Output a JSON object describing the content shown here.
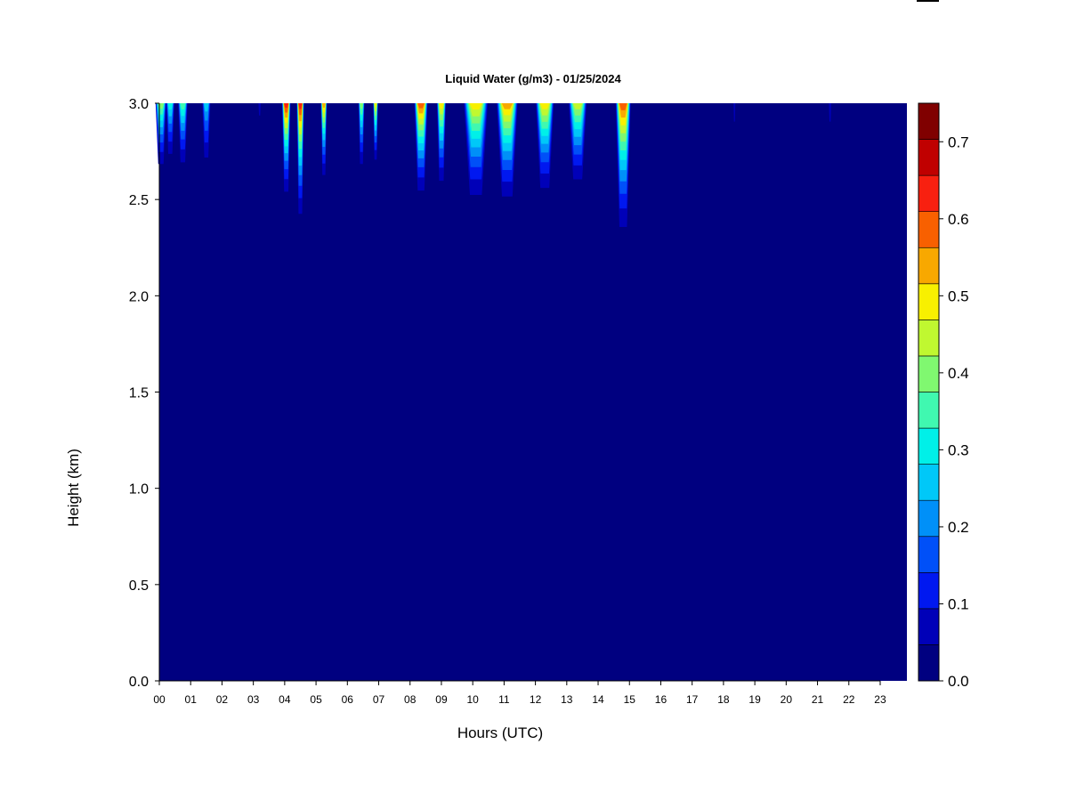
{
  "chart_data": {
    "type": "heatmap",
    "title": "Liquid Water (g/m3) - 01/25/2024",
    "xlabel": "Hours (UTC)",
    "ylabel": "Height (km)",
    "xlim": [
      0,
      24
    ],
    "ylim": [
      0,
      3.0
    ],
    "x_ticks": [
      "00",
      "01",
      "02",
      "03",
      "04",
      "05",
      "06",
      "07",
      "08",
      "09",
      "10",
      "11",
      "12",
      "13",
      "14",
      "15",
      "16",
      "17",
      "18",
      "19",
      "20",
      "21",
      "22",
      "23"
    ],
    "y_ticks": [
      "0.0",
      "0.5",
      "1.0",
      "1.5",
      "2.0",
      "2.5",
      "3.0"
    ],
    "grid": false,
    "colorbar": {
      "levels": [
        0.0,
        0.05,
        0.1,
        0.15,
        0.2,
        0.25,
        0.3,
        0.35,
        0.4,
        0.45,
        0.5,
        0.55,
        0.6,
        0.65,
        0.7,
        0.75
      ],
      "tick_labels": [
        "0.0",
        "0.1",
        "0.2",
        "0.3",
        "0.4",
        "0.5",
        "0.6",
        "0.7"
      ],
      "colors": [
        "#000080",
        "#0000b8",
        "#0018f0",
        "#0050f8",
        "#0090f8",
        "#00c8f8",
        "#00f0e8",
        "#40f8b0",
        "#80f870",
        "#c0f830",
        "#f8f000",
        "#f8a800",
        "#f86000",
        "#f82010",
        "#c00000",
        "#800000"
      ]
    },
    "cloud_events": [
      {
        "hour": 0.05,
        "width": 0.18,
        "top_value": 0.45,
        "base_km": 2.55
      },
      {
        "hour": 0.35,
        "width": 0.14,
        "top_value": 0.35,
        "base_km": 2.6
      },
      {
        "hour": 0.75,
        "width": 0.16,
        "top_value": 0.4,
        "base_km": 2.55
      },
      {
        "hour": 1.5,
        "width": 0.14,
        "top_value": 0.3,
        "base_km": 2.55
      },
      {
        "hour": 3.2,
        "width": 0.05,
        "top_value": 0.12,
        "base_km": 2.8
      },
      {
        "hour": 4.05,
        "width": 0.14,
        "top_value": 0.7,
        "base_km": 2.4
      },
      {
        "hour": 4.5,
        "width": 0.12,
        "top_value": 0.7,
        "base_km": 2.25
      },
      {
        "hour": 5.25,
        "width": 0.1,
        "top_value": 0.6,
        "base_km": 2.5
      },
      {
        "hour": 6.45,
        "width": 0.1,
        "top_value": 0.45,
        "base_km": 2.55
      },
      {
        "hour": 6.9,
        "width": 0.08,
        "top_value": 0.55,
        "base_km": 2.6
      },
      {
        "hour": 8.35,
        "width": 0.22,
        "top_value": 0.65,
        "base_km": 2.4
      },
      {
        "hour": 9.0,
        "width": 0.15,
        "top_value": 0.55,
        "base_km": 2.45
      },
      {
        "hour": 10.1,
        "width": 0.4,
        "top_value": 0.55,
        "base_km": 2.35
      },
      {
        "hour": 11.1,
        "width": 0.35,
        "top_value": 0.6,
        "base_km": 2.35
      },
      {
        "hour": 12.3,
        "width": 0.3,
        "top_value": 0.55,
        "base_km": 2.4
      },
      {
        "hour": 13.35,
        "width": 0.3,
        "top_value": 0.5,
        "base_km": 2.45
      },
      {
        "hour": 14.8,
        "width": 0.25,
        "top_value": 0.65,
        "base_km": 2.15
      },
      {
        "hour": 18.35,
        "width": 0.04,
        "top_value": 0.12,
        "base_km": 2.7
      },
      {
        "hour": 21.4,
        "width": 0.05,
        "top_value": 0.12,
        "base_km": 2.7
      }
    ]
  }
}
